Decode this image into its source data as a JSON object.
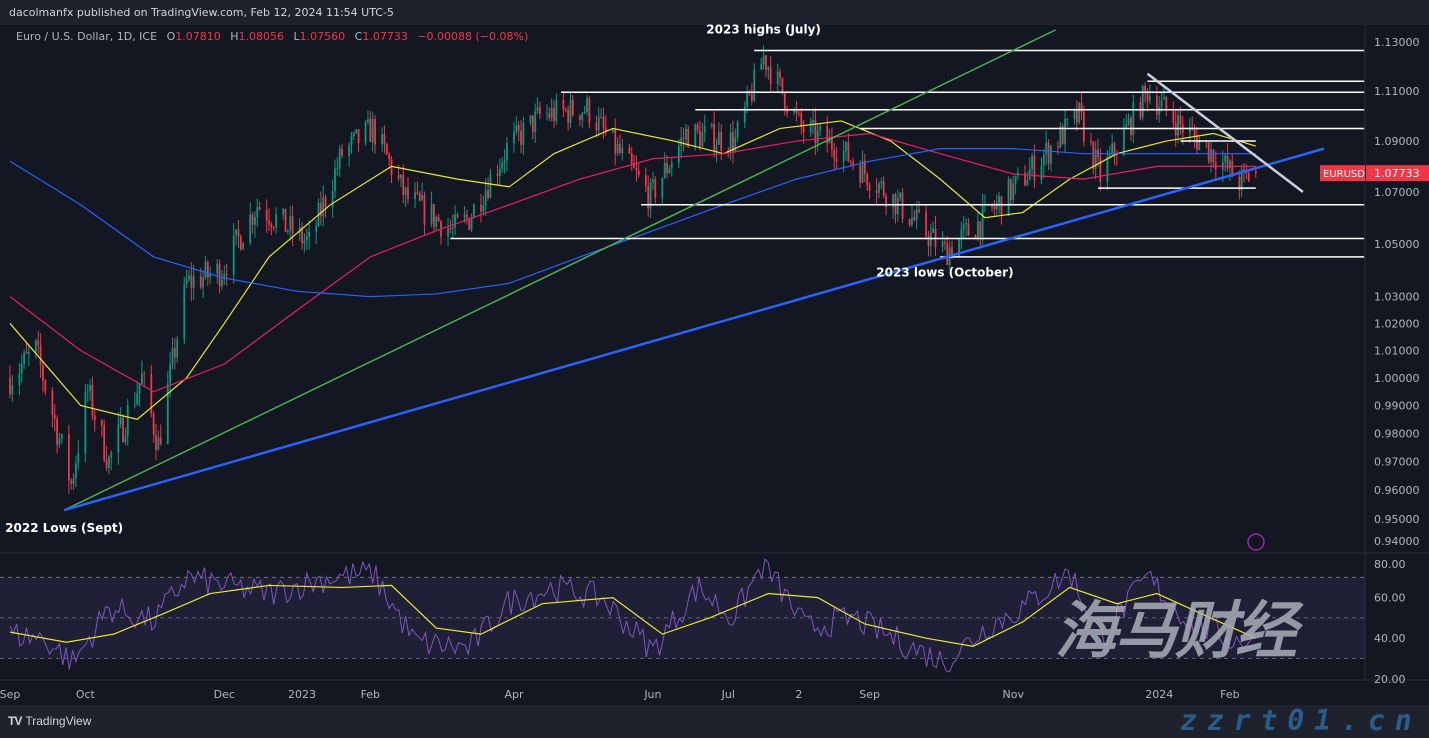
{
  "header": {
    "published": "dacolmanfx published on TradingView.com, Feb 12, 2024 11:54 UTC-5"
  },
  "legend": {
    "symbol": "Euro / U.S. Dollar, 1D, ICE",
    "o_label": "O",
    "o": "1.07810",
    "h_label": "H",
    "h": "1.08056",
    "l_label": "L",
    "l": "1.07560",
    "c_label": "C",
    "c": "1.07733",
    "change": "−0.00088 (−0.08%)"
  },
  "price_tag": {
    "symbol": "EURUSD",
    "value": "1.07733",
    "color": "#f23645"
  },
  "footer": {
    "logo": "TradingView",
    "logo_mark": "TV"
  },
  "watermark": {
    "cn": "海马财经",
    "url": "zzrt01.cn"
  },
  "colors": {
    "up": "#089981",
    "down": "#f23645",
    "ma_yellow": "#e8e830",
    "ma_red": "#e91e63",
    "ma_blue": "#2962ff",
    "rsi": "#7e57c2",
    "green_trend": "#4caf50",
    "blue_trend": "#2962ff",
    "bg": "#131722"
  },
  "chart_data": [
    {
      "type": "candlestick",
      "scale": "log",
      "ylim": [
        0.94,
        1.13
      ],
      "y_ticks": [
        "1.13000",
        "1.11000",
        "1.09000",
        "1.07000",
        "1.05000",
        "1.03000",
        "1.02000",
        "1.01000",
        "1.00000",
        "0.99000",
        "0.98000",
        "0.97000",
        "0.96000",
        "0.95000",
        "0.94000"
      ],
      "x_ticks": [
        {
          "label": "Sep",
          "date": "2022-09-01"
        },
        {
          "label": "Oct",
          "date": "2022-10-03"
        },
        {
          "label": "Dec",
          "date": "2022-12-01"
        },
        {
          "label": "2023",
          "date": "2023-01-03"
        },
        {
          "label": "Feb",
          "date": "2023-02-01"
        },
        {
          "label": "Apr",
          "date": "2023-04-03"
        },
        {
          "label": "Jun",
          "date": "2023-06-01"
        },
        {
          "label": "Jul",
          "date": "2023-07-03"
        },
        {
          "label": "2",
          "date": "2023-08-02"
        },
        {
          "label": "Sep",
          "date": "2023-09-01"
        },
        {
          "label": "Nov",
          "date": "2023-11-01"
        },
        {
          "label": "2024",
          "date": "2024-01-02"
        },
        {
          "label": "Feb",
          "date": "2024-02-01"
        }
      ],
      "close_path": [
        [
          "2022-09-01",
          1.0
        ],
        [
          "2022-09-12",
          1.01
        ],
        [
          "2022-09-27",
          0.962
        ],
        [
          "2022-10-04",
          0.995
        ],
        [
          "2022-10-13",
          0.97
        ],
        [
          "2022-10-27",
          1.0
        ],
        [
          "2022-11-03",
          0.976
        ],
        [
          "2022-11-15",
          1.035
        ],
        [
          "2022-11-30",
          1.04
        ],
        [
          "2022-12-15",
          1.065
        ],
        [
          "2023-01-06",
          1.05
        ],
        [
          "2023-01-20",
          1.085
        ],
        [
          "2023-02-02",
          1.095
        ],
        [
          "2023-02-16",
          1.068
        ],
        [
          "2023-03-08",
          1.055
        ],
        [
          "2023-03-15",
          1.06
        ],
        [
          "2023-03-31",
          1.087
        ],
        [
          "2023-04-14",
          1.1
        ],
        [
          "2023-05-04",
          1.103
        ],
        [
          "2023-05-31",
          1.068
        ],
        [
          "2023-06-15",
          1.093
        ],
        [
          "2023-07-06",
          1.09
        ],
        [
          "2023-07-18",
          1.124
        ],
        [
          "2023-08-03",
          1.095
        ],
        [
          "2023-08-18",
          1.088
        ],
        [
          "2023-09-08",
          1.07
        ],
        [
          "2023-10-03",
          1.047
        ],
        [
          "2023-10-20",
          1.06
        ],
        [
          "2023-11-03",
          1.073
        ],
        [
          "2023-11-29",
          1.1
        ],
        [
          "2023-12-08",
          1.076
        ],
        [
          "2023-12-28",
          1.11
        ],
        [
          "2024-01-10",
          1.097
        ],
        [
          "2024-01-25",
          1.085
        ],
        [
          "2024-02-05",
          1.074
        ],
        [
          "2024-02-12",
          1.0773
        ]
      ],
      "moving_averages": [
        {
          "color": "#e8e830",
          "points": [
            [
              "2022-09-01",
              1.02
            ],
            [
              "2022-10-01",
              0.99
            ],
            [
              "2022-10-25",
              0.985
            ],
            [
              "2022-11-15",
              1.0
            ],
            [
              "2022-12-01",
              1.02
            ],
            [
              "2022-12-20",
              1.045
            ],
            [
              "2023-01-15",
              1.065
            ],
            [
              "2023-02-10",
              1.08
            ],
            [
              "2023-03-10",
              1.075
            ],
            [
              "2023-04-01",
              1.072
            ],
            [
              "2023-04-20",
              1.085
            ],
            [
              "2023-05-15",
              1.095
            ],
            [
              "2023-06-10",
              1.09
            ],
            [
              "2023-07-01",
              1.085
            ],
            [
              "2023-07-25",
              1.095
            ],
            [
              "2023-08-20",
              1.098
            ],
            [
              "2023-09-10",
              1.09
            ],
            [
              "2023-10-01",
              1.075
            ],
            [
              "2023-10-20",
              1.06
            ],
            [
              "2023-11-05",
              1.062
            ],
            [
              "2023-11-25",
              1.075
            ],
            [
              "2023-12-15",
              1.085
            ],
            [
              "2024-01-05",
              1.09
            ],
            [
              "2024-01-25",
              1.093
            ],
            [
              "2024-02-12",
              1.088
            ]
          ]
        },
        {
          "color": "#e91e63",
          "points": [
            [
              "2022-09-01",
              1.03
            ],
            [
              "2022-10-01",
              1.01
            ],
            [
              "2022-11-01",
              0.995
            ],
            [
              "2022-12-01",
              1.005
            ],
            [
              "2023-01-01",
              1.025
            ],
            [
              "2023-02-01",
              1.045
            ],
            [
              "2023-03-01",
              1.055
            ],
            [
              "2023-04-01",
              1.065
            ],
            [
              "2023-05-01",
              1.075
            ],
            [
              "2023-06-01",
              1.083
            ],
            [
              "2023-07-01",
              1.085
            ],
            [
              "2023-08-01",
              1.09
            ],
            [
              "2023-09-01",
              1.093
            ],
            [
              "2023-10-01",
              1.085
            ],
            [
              "2023-11-01",
              1.077
            ],
            [
              "2023-12-01",
              1.075
            ],
            [
              "2024-01-01",
              1.08
            ],
            [
              "2024-02-12",
              1.08
            ]
          ]
        },
        {
          "color": "#2962ff",
          "points": [
            [
              "2022-09-01",
              1.082
            ],
            [
              "2022-10-01",
              1.065
            ],
            [
              "2022-11-01",
              1.045
            ],
            [
              "2022-12-01",
              1.037
            ],
            [
              "2023-01-01",
              1.032
            ],
            [
              "2023-02-01",
              1.03
            ],
            [
              "2023-03-01",
              1.031
            ],
            [
              "2023-04-01",
              1.035
            ],
            [
              "2023-05-01",
              1.045
            ],
            [
              "2023-06-01",
              1.055
            ],
            [
              "2023-07-01",
              1.065
            ],
            [
              "2023-08-01",
              1.075
            ],
            [
              "2023-09-01",
              1.082
            ],
            [
              "2023-10-01",
              1.087
            ],
            [
              "2023-11-01",
              1.087
            ],
            [
              "2023-12-01",
              1.085
            ],
            [
              "2024-01-01",
              1.085
            ],
            [
              "2024-02-12",
              1.085
            ]
          ]
        }
      ],
      "horizontal_levels": [
        {
          "price": 1.1265,
          "from": "2023-07-14",
          "to": "2024-03-29"
        },
        {
          "price": 1.114,
          "from": "2023-12-28",
          "to": "2024-03-29"
        },
        {
          "price": 1.1095,
          "from": "2023-04-23",
          "to": "2024-03-29"
        },
        {
          "price": 1.1025,
          "from": "2023-06-19",
          "to": "2024-03-29"
        },
        {
          "price": 1.095,
          "from": "2023-08-28",
          "to": "2024-03-29"
        },
        {
          "price": 1.09,
          "from": "2024-01-11",
          "to": "2024-02-12"
        },
        {
          "price": 1.0715,
          "from": "2023-12-07",
          "to": "2024-02-12"
        },
        {
          "price": 1.065,
          "from": "2023-05-27",
          "to": "2024-03-29"
        },
        {
          "price": 1.052,
          "from": "2023-03-07",
          "to": "2024-03-29"
        },
        {
          "price": 1.045,
          "from": "2023-10-01",
          "to": "2024-03-29"
        }
      ],
      "trendlines": [
        {
          "color": "#4caf50",
          "from": [
            "2022-09-24",
            0.953
          ],
          "to": [
            "2023-11-19",
            1.135
          ]
        },
        {
          "color": "#2962ff",
          "from": [
            "2022-09-24",
            0.953
          ],
          "to": [
            "2024-03-12",
            1.087
          ]
        },
        {
          "color": "#c8d0e0",
          "from": [
            "2023-12-28",
            1.117
          ],
          "to": [
            "2024-03-03",
            1.07
          ]
        }
      ],
      "annotations": [
        {
          "text": "2023 highs (July)",
          "date": "2023-07-18",
          "price": 1.1335
        },
        {
          "text": "2023 lows (October)",
          "date": "2023-10-03",
          "price": 1.0375
        },
        {
          "text": "2022 Lows (Sept)",
          "date": "2022-09-24",
          "price": 0.9455
        }
      ]
    },
    {
      "type": "line",
      "indicator_pane": true,
      "ylim": [
        20,
        80
      ],
      "y_ticks": [
        "80.00",
        "60.00",
        "40.00",
        "20.00"
      ],
      "band": [
        30,
        70
      ],
      "rsi": [
        [
          "2022-09-01",
          42
        ],
        [
          "2022-09-15",
          40
        ],
        [
          "2022-09-28",
          28
        ],
        [
          "2022-10-13",
          55
        ],
        [
          "2022-11-01",
          48
        ],
        [
          "2022-11-15",
          70
        ],
        [
          "2022-12-01",
          66
        ],
        [
          "2022-12-20",
          62
        ],
        [
          "2023-01-15",
          70
        ],
        [
          "2023-02-02",
          72
        ],
        [
          "2023-02-20",
          38
        ],
        [
          "2023-03-15",
          35
        ],
        [
          "2023-04-01",
          58
        ],
        [
          "2023-04-20",
          65
        ],
        [
          "2023-05-10",
          60
        ],
        [
          "2023-06-01",
          34
        ],
        [
          "2023-06-20",
          65
        ],
        [
          "2023-07-05",
          50
        ],
        [
          "2023-07-18",
          77
        ],
        [
          "2023-08-05",
          45
        ],
        [
          "2023-08-25",
          50
        ],
        [
          "2023-09-20",
          35
        ],
        [
          "2023-10-03",
          28
        ],
        [
          "2023-10-20",
          45
        ],
        [
          "2023-11-05",
          55
        ],
        [
          "2023-11-25",
          73
        ],
        [
          "2023-12-08",
          40
        ],
        [
          "2023-12-28",
          70
        ],
        [
          "2024-01-15",
          48
        ],
        [
          "2024-02-05",
          38
        ],
        [
          "2024-02-12",
          42
        ]
      ],
      "rsi_ma": [
        [
          "2022-09-01",
          43
        ],
        [
          "2022-09-25",
          38
        ],
        [
          "2022-10-15",
          42
        ],
        [
          "2022-11-05",
          52
        ],
        [
          "2022-11-25",
          62
        ],
        [
          "2022-12-20",
          66
        ],
        [
          "2023-01-20",
          65
        ],
        [
          "2023-02-10",
          66
        ],
        [
          "2023-03-01",
          45
        ],
        [
          "2023-03-20",
          42
        ],
        [
          "2023-04-15",
          57
        ],
        [
          "2023-05-15",
          60
        ],
        [
          "2023-06-05",
          42
        ],
        [
          "2023-06-25",
          50
        ],
        [
          "2023-07-20",
          62
        ],
        [
          "2023-08-10",
          60
        ],
        [
          "2023-08-30",
          47
        ],
        [
          "2023-09-25",
          40
        ],
        [
          "2023-10-15",
          36
        ],
        [
          "2023-11-05",
          48
        ],
        [
          "2023-11-25",
          65
        ],
        [
          "2023-12-15",
          57
        ],
        [
          "2024-01-01",
          62
        ],
        [
          "2024-01-20",
          52
        ],
        [
          "2024-02-12",
          40
        ]
      ]
    }
  ]
}
